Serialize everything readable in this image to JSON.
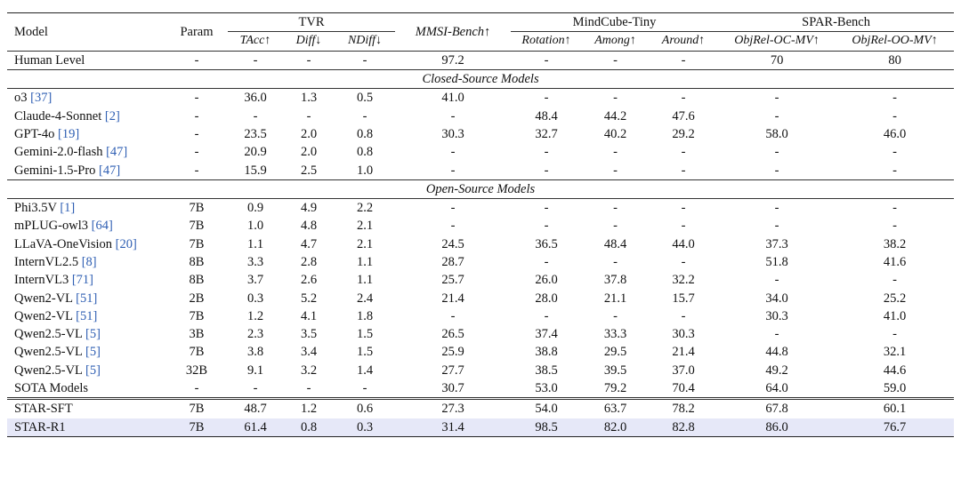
{
  "headers": {
    "model": "Model",
    "param": "Param",
    "groups": [
      "TVR",
      "MMSI-Bench↑",
      "MindCube-Tiny",
      "SPAR-Bench"
    ],
    "sub": [
      "TAcc↑",
      "Diff↓",
      "NDiff↓",
      "Rotation↑",
      "Among↑",
      "Around↑",
      "ObjRel-OC-MV↑",
      "ObjRel-OO-MV↑"
    ]
  },
  "human": {
    "name": "Human Level",
    "cells": [
      "-",
      "-",
      "-",
      "-",
      "97.2",
      "-",
      "-",
      "-",
      "70",
      "80"
    ]
  },
  "sections": {
    "closed": "Closed-Source Models",
    "open": "Open-Source Models"
  },
  "closed_rows": [
    {
      "name": "o3 ",
      "cite": "[37]",
      "cells": [
        "-",
        "36.0",
        "1.3",
        "0.5",
        "41.0",
        "-",
        "-",
        "-",
        "-",
        "-"
      ]
    },
    {
      "name": "Claude-4-Sonnet ",
      "cite": "[2]",
      "cells": [
        "-",
        "-",
        "-",
        "-",
        "-",
        "48.4",
        "44.2",
        "47.6",
        "-",
        "-"
      ]
    },
    {
      "name": "GPT-4o ",
      "cite": "[19]",
      "cells": [
        "-",
        "23.5",
        "2.0",
        "0.8",
        "30.3",
        "32.7",
        "40.2",
        "29.2",
        "58.0",
        "46.0"
      ]
    },
    {
      "name": "Gemini-2.0-flash ",
      "cite": "[47]",
      "cells": [
        "-",
        "20.9",
        "2.0",
        "0.8",
        "-",
        "-",
        "-",
        "-",
        "-",
        "-"
      ]
    },
    {
      "name": "Gemini-1.5-Pro ",
      "cite": "[47]",
      "cells": [
        "-",
        "15.9",
        "2.5",
        "1.0",
        "-",
        "-",
        "-",
        "-",
        "-",
        "-"
      ]
    }
  ],
  "open_rows": [
    {
      "name": "Phi3.5V ",
      "cite": "[1]",
      "cells": [
        "7B",
        "0.9",
        "4.9",
        "2.2",
        "-",
        "-",
        "-",
        "-",
        "-",
        "-"
      ]
    },
    {
      "name": "mPLUG-owl3 ",
      "cite": "[64]",
      "cells": [
        "7B",
        "1.0",
        "4.8",
        "2.1",
        "-",
        "-",
        "-",
        "-",
        "-",
        "-"
      ]
    },
    {
      "name": "LLaVA-OneVision ",
      "cite": "[20]",
      "cells": [
        "7B",
        "1.1",
        "4.7",
        "2.1",
        "24.5",
        "36.5",
        "48.4",
        "44.0",
        "37.3",
        "38.2"
      ]
    },
    {
      "name": "InternVL2.5 ",
      "cite": "[8]",
      "cells": [
        "8B",
        "3.3",
        "2.8",
        "1.1",
        "28.7",
        "-",
        "-",
        "-",
        "51.8",
        "41.6"
      ]
    },
    {
      "name": "InternVL3 ",
      "cite": "[71]",
      "cells": [
        "8B",
        "3.7",
        "2.6",
        "1.1",
        "25.7",
        "26.0",
        "37.8",
        "32.2",
        "-",
        "-"
      ]
    },
    {
      "name": "Qwen2-VL ",
      "cite": "[51]",
      "cells": [
        "2B",
        "0.3",
        "5.2",
        "2.4",
        "21.4",
        "28.0",
        "21.1",
        "15.7",
        "34.0",
        "25.2"
      ]
    },
    {
      "name": "Qwen2-VL ",
      "cite": "[51]",
      "cells": [
        "7B",
        "1.2",
        "4.1",
        "1.8",
        "-",
        "-",
        "-",
        "-",
        "30.3",
        "41.0"
      ]
    },
    {
      "name": "Qwen2.5-VL ",
      "cite": "[5]",
      "cells": [
        "3B",
        "2.3",
        "3.5",
        "1.5",
        "26.5",
        "37.4",
        "33.3",
        "30.3",
        "-",
        "-"
      ]
    },
    {
      "name": "Qwen2.5-VL ",
      "cite": "[5]",
      "cells": [
        "7B",
        "3.8",
        "3.4",
        "1.5",
        "25.9",
        "38.8",
        "29.5",
        "21.4",
        "44.8",
        "32.1"
      ]
    },
    {
      "name": "Qwen2.5-VL ",
      "cite": "[5]",
      "cells": [
        "32B",
        "9.1",
        "3.2",
        "1.4",
        "27.7",
        "38.5",
        "39.5",
        "37.0",
        "49.2",
        "44.6"
      ]
    },
    {
      "name": "SOTA Models",
      "cite": "",
      "cells": [
        "-",
        "-",
        "-",
        "-",
        "30.7",
        "53.0",
        "79.2",
        "70.4",
        "64.0",
        "59.0"
      ]
    }
  ],
  "ours_rows": [
    {
      "name": "STAR-SFT",
      "cite": "",
      "cells": [
        "7B",
        "48.7",
        "1.2",
        "0.6",
        "27.3",
        "54.0",
        "63.7",
        "78.2",
        "67.8",
        "60.1"
      ],
      "highlight": false,
      "bold": []
    },
    {
      "name": "STAR-R1",
      "cite": "",
      "cells": [
        "7B",
        "61.4",
        "0.8",
        "0.3",
        "31.4",
        "98.5",
        "82.0",
        "82.8",
        "86.0",
        "76.7"
      ],
      "highlight": true,
      "bold": [
        1,
        2,
        3,
        4,
        5,
        6,
        7,
        8,
        9
      ]
    }
  ]
}
